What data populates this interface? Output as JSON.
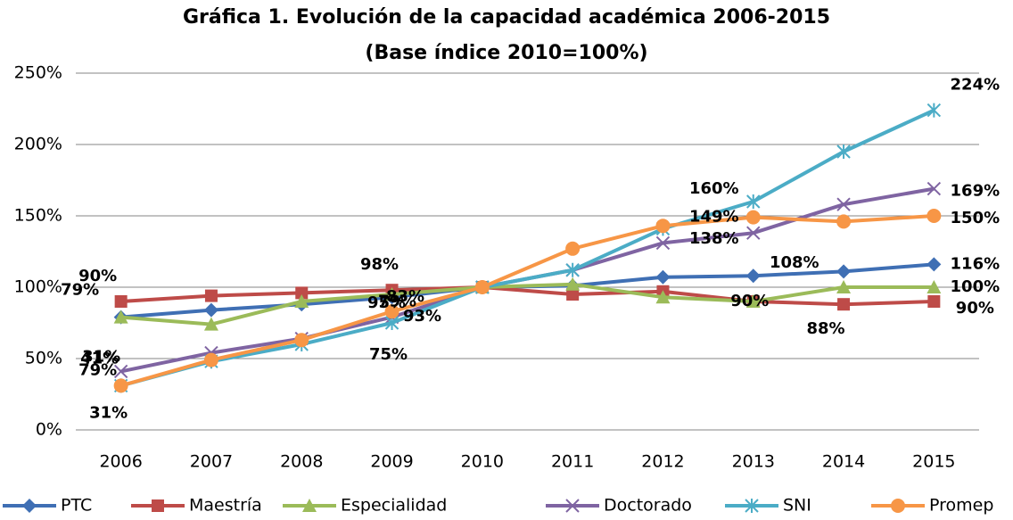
{
  "chart_data": {
    "type": "line",
    "title": "Gráfica 1. Evolución de la capacidad académica 2006-2015",
    "subtitle": "(Base índice 2010=100%)",
    "categories": [
      "2006",
      "2007",
      "2008",
      "2009",
      "2010",
      "2011",
      "2012",
      "2013",
      "2014",
      "2015"
    ],
    "ylim": [
      0,
      250
    ],
    "yticks": [
      {
        "value": 0,
        "label": "0%"
      },
      {
        "value": 50,
        "label": "50%"
      },
      {
        "value": 100,
        "label": "100%"
      },
      {
        "value": 150,
        "label": "150%"
      },
      {
        "value": 200,
        "label": "200%"
      },
      {
        "value": 250,
        "label": "250%"
      }
    ],
    "grid": true,
    "legend": "bottom",
    "series": [
      {
        "name": "PTC",
        "color": "#3f6fb4",
        "marker": "diamond",
        "values": [
          79,
          84,
          88,
          93,
          100,
          101,
          107,
          108,
          111,
          116
        ],
        "value_labels": [
          "79%",
          null,
          null,
          "93%",
          null,
          null,
          null,
          "108%",
          null,
          "116%"
        ]
      },
      {
        "name": "Maestría",
        "color": "#be4b48",
        "marker": "square",
        "values": [
          90,
          94,
          96,
          98,
          100,
          95,
          97,
          90,
          88,
          90
        ],
        "value_labels": [
          "90%",
          null,
          null,
          "98%",
          null,
          null,
          null,
          null,
          "88%",
          "90%"
        ]
      },
      {
        "name": "Especialidad",
        "color": "#9bbb59",
        "marker": "triangle",
        "values": [
          79,
          74,
          90,
          95,
          100,
          102,
          93,
          90,
          100,
          100
        ],
        "value_labels": [
          "79%",
          null,
          null,
          "95%",
          null,
          null,
          null,
          "90%",
          null,
          "100%"
        ]
      },
      {
        "name": "Doctorado",
        "color": "#7f64a2",
        "marker": "x",
        "values": [
          41,
          54,
          64,
          79,
          100,
          112,
          131,
          138,
          158,
          169
        ],
        "value_labels": [
          "41%",
          null,
          null,
          "79%",
          null,
          null,
          null,
          "138%",
          null,
          "169%"
        ]
      },
      {
        "name": "SNI",
        "color": "#4bacc6",
        "marker": "star",
        "values": [
          31,
          48,
          60,
          75,
          100,
          112,
          141,
          160,
          195,
          224
        ],
        "value_labels": [
          "31%",
          null,
          null,
          "75%",
          null,
          null,
          null,
          "160%",
          null,
          "224%"
        ]
      },
      {
        "name": "Promep",
        "color": "#f79646",
        "marker": "circle",
        "values": [
          31,
          49,
          63,
          83,
          100,
          127,
          143,
          149,
          146,
          150
        ],
        "value_labels": [
          "31%",
          null,
          null,
          "83%",
          null,
          null,
          null,
          "149%",
          null,
          "150%"
        ]
      }
    ]
  }
}
